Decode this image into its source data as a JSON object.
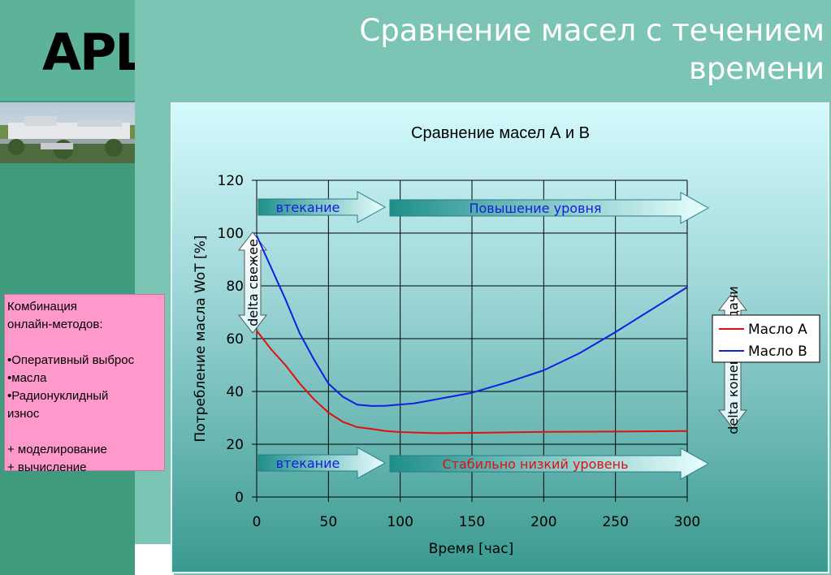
{
  "slide": {
    "title_line1": "Сравнение масел с течением",
    "title_line2": "времени",
    "logo_text": "APL"
  },
  "info_box": {
    "lines": [
      "Комбинация",
      "онлайн-методов:",
      "",
      "•Оперативный выброс",
      "•масла",
      "•Радионуклидный",
      "износ",
      "",
      "+ моделирование",
      "+ вычисление"
    ]
  },
  "colors": {
    "slide_bg": "#7cc4b4",
    "left_strip": "#3f9a7e",
    "info_box": "#ff99cc",
    "series_a": "#e01010",
    "series_b": "#1020e0",
    "arrow_fill_start": "#1f8f8a",
    "arrow_fill_end": "#e8ffff"
  },
  "chart_data": {
    "type": "line",
    "title": "Сравнение масел А и В",
    "xlabel": "Время [час]",
    "ylabel": "Потребление масла WoT [%]",
    "xlim": [
      0,
      300
    ],
    "ylim": [
      0,
      120
    ],
    "xticks": [
      0,
      50,
      100,
      150,
      200,
      250,
      300
    ],
    "yticks": [
      0,
      20,
      40,
      60,
      80,
      100,
      120
    ],
    "grid": true,
    "legend_position": "right",
    "series": [
      {
        "name": "Масло А",
        "color": "#e01010",
        "points": [
          [
            0,
            63
          ],
          [
            10,
            56
          ],
          [
            20,
            50
          ],
          [
            30,
            43
          ],
          [
            40,
            37
          ],
          [
            50,
            32
          ],
          [
            60,
            28.5
          ],
          [
            70,
            26.5
          ],
          [
            80,
            25.8
          ],
          [
            90,
            25
          ],
          [
            100,
            24.6
          ],
          [
            125,
            24.2
          ],
          [
            150,
            24.3
          ],
          [
            200,
            24.7
          ],
          [
            250,
            24.8
          ],
          [
            300,
            25
          ]
        ]
      },
      {
        "name": "Масло В",
        "color": "#1020e0",
        "points": [
          [
            0,
            99
          ],
          [
            10,
            87
          ],
          [
            20,
            75
          ],
          [
            30,
            62
          ],
          [
            40,
            52
          ],
          [
            50,
            43
          ],
          [
            60,
            38
          ],
          [
            70,
            35
          ],
          [
            80,
            34.5
          ],
          [
            90,
            34.6
          ],
          [
            110,
            35.5
          ],
          [
            130,
            37.5
          ],
          [
            150,
            39.5
          ],
          [
            175,
            43.5
          ],
          [
            200,
            48
          ],
          [
            225,
            54.5
          ],
          [
            250,
            62.5
          ],
          [
            275,
            71
          ],
          [
            300,
            79.5
          ]
        ]
      }
    ],
    "annotations": {
      "top_arrow_left": "втекание",
      "top_arrow_right": "Повышение уровня",
      "bottom_arrow_left": "втекание",
      "bottom_arrow_right": "Стабильно низкий уровень",
      "left_vertical": "delta свежее",
      "right_vertical": "delta конец передачи"
    },
    "annotation_colors": {
      "top_arrow_left": "#1020e0",
      "top_arrow_right": "#1020e0",
      "bottom_arrow_left": "#1020e0",
      "bottom_arrow_right": "#e01010",
      "left_vertical": "#000000",
      "right_vertical": "#000000"
    }
  }
}
